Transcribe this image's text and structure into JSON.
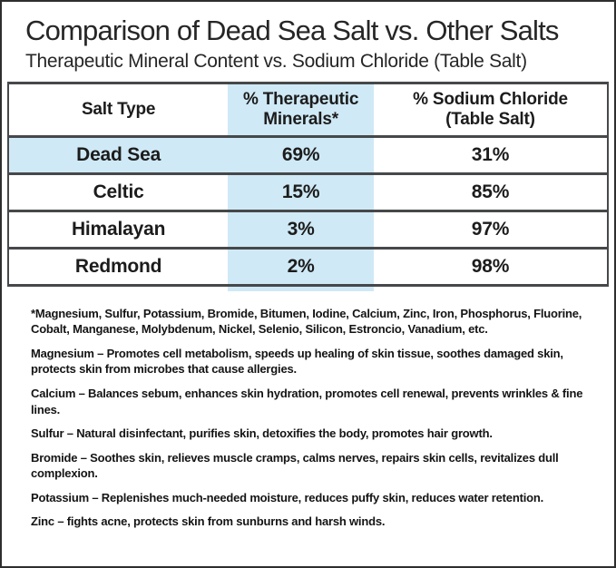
{
  "colors": {
    "highlight": "#cfe9f6",
    "rule": "#46484a",
    "text": "#1c1c1c"
  },
  "header": {
    "title": "Comparison of Dead Sea Salt vs. Other Salts",
    "subtitle": "Therapeutic Mineral Content vs. Sodium Chloride (Table Salt)"
  },
  "table": {
    "columns": {
      "salt_type": "Salt Type",
      "therapeutic": "% Therapeutic\nMinerals*",
      "sodium": "% Sodium Chloride\n(Table Salt)"
    },
    "rows": [
      {
        "salt": "Dead Sea",
        "therapeutic_pct": "69%",
        "sodium_pct": "31%"
      },
      {
        "salt": "Celtic",
        "therapeutic_pct": "15%",
        "sodium_pct": "85%"
      },
      {
        "salt": "Himalayan",
        "therapeutic_pct": "3%",
        "sodium_pct": "97%"
      },
      {
        "salt": "Redmond",
        "therapeutic_pct": "2%",
        "sodium_pct": "98%"
      }
    ],
    "highlighted_row": "Dead Sea"
  },
  "notes": {
    "footnote": "*Magnesium, Sulfur, Potassium, Bromide, Bitumen, Iodine, Calcium, Zinc, Iron, Phosphorus, Fluorine, Cobalt, Manganese, Molybdenum, Nickel, Selenio, Silicon, Estroncio, Vanadium, etc.",
    "paragraphs": [
      "Magnesium – Promotes cell metabolism, speeds up healing of skin tissue, soothes damaged skin, protects skin from microbes that cause allergies.",
      "Calcium – Balances sebum, enhances skin hydration, promotes cell renewal, prevents wrinkles & fine lines.",
      "Sulfur – Natural disinfectant, purifies skin, detoxifies the body, promotes hair growth.",
      "Bromide – Soothes skin, relieves muscle cramps, calms nerves, repairs skin cells, revitalizes dull complexion.",
      "Potassium – Replenishes much-needed moisture, reduces puffy skin, reduces water retention.",
      "Zinc – fights acne, protects skin from sunburns and harsh winds."
    ]
  },
  "chart_data": {
    "type": "table",
    "title": "Comparison of Dead Sea Salt vs. Other Salts",
    "subtitle": "Therapeutic Mineral Content vs. Sodium Chloride (Table Salt)",
    "columns": [
      "Salt Type",
      "% Therapeutic Minerals*",
      "% Sodium Chloride (Table Salt)"
    ],
    "rows": [
      [
        "Dead Sea",
        69,
        31
      ],
      [
        "Celtic",
        15,
        85
      ],
      [
        "Himalayan",
        3,
        97
      ],
      [
        "Redmond",
        2,
        98
      ]
    ],
    "units": "percent",
    "highlighted_row": "Dead Sea",
    "highlight_color": "#cfe9f6"
  }
}
